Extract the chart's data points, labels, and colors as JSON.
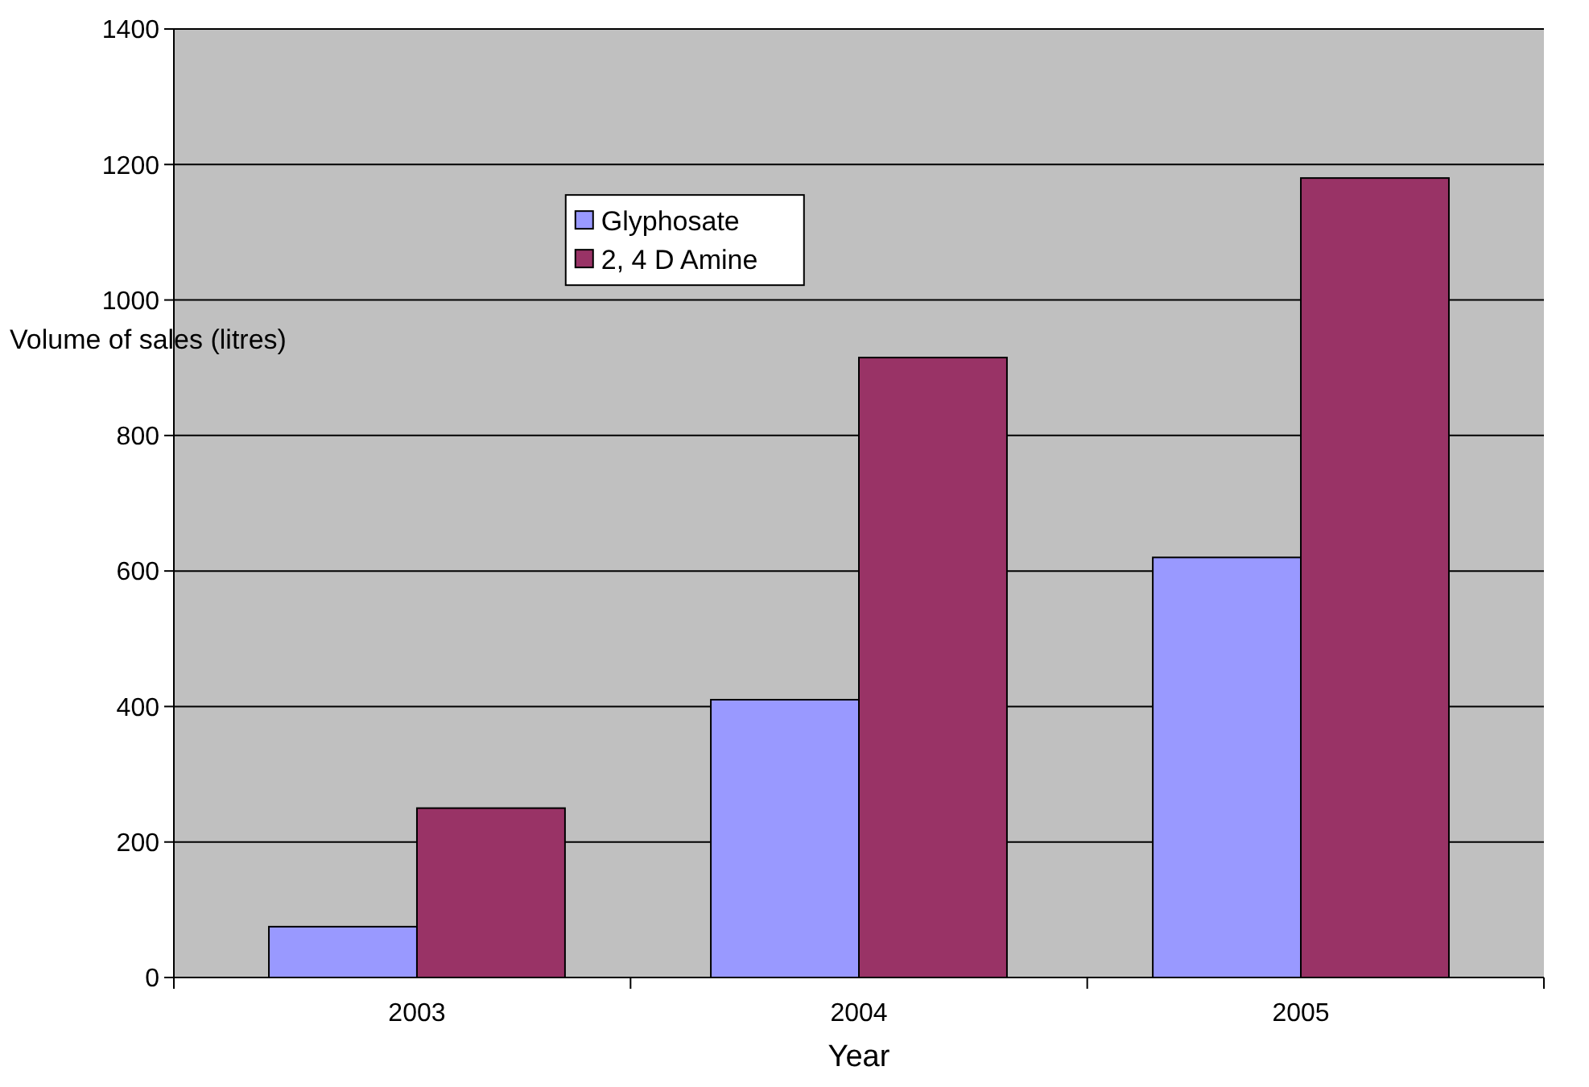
{
  "chart_data": {
    "type": "bar",
    "xlabel": "Year",
    "ylabel": "Volume of sales (litres)",
    "categories": [
      "2003",
      "2004",
      "2005"
    ],
    "series": [
      {
        "name": "Glyphosate",
        "color": "#9999ff",
        "values": [
          75,
          410,
          620
        ]
      },
      {
        "name": "2, 4 D Amine",
        "color": "#993366",
        "values": [
          250,
          915,
          1180
        ]
      }
    ],
    "ylim": [
      0,
      1400
    ],
    "yticks": [
      0,
      200,
      400,
      600,
      800,
      1000,
      1200,
      1400
    ],
    "grid": "y",
    "legend": "top left"
  }
}
